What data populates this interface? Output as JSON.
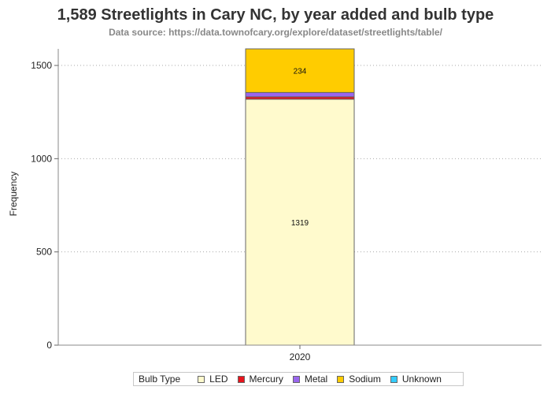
{
  "title": "1,589 Streetlights in Cary NC, by year added and bulb type",
  "subtitle": "Data source: https://data.townofcary.org/explore/dataset/streetlights/table/",
  "chart_data": {
    "type": "bar",
    "stacked": true,
    "title": "1,589 Streetlights in Cary NC, by year added and bulb type",
    "subtitle": "Data source: https://data.townofcary.org/explore/dataset/streetlights/table/",
    "xlabel": "",
    "ylabel": "Frequency",
    "categories": [
      "2020"
    ],
    "ylim": [
      0,
      1589
    ],
    "yticks": [
      0,
      500,
      1000,
      1500
    ],
    "ytick_labels": [
      "0",
      "500",
      "1000",
      "1500"
    ],
    "grid": "horizontal dotted",
    "legend_title": "Bulb Type",
    "legend_position": "bottom",
    "series": [
      {
        "name": "LED",
        "values": [
          1319
        ],
        "color": "#FFFACD",
        "data_label": "1319"
      },
      {
        "name": "Mercury",
        "values": [
          13
        ],
        "color": "#E8141C"
      },
      {
        "name": "Metal",
        "values": [
          23
        ],
        "color": "#9966EE"
      },
      {
        "name": "Sodium",
        "values": [
          234
        ],
        "color": "#FFCC00",
        "data_label": "234"
      },
      {
        "name": "Unknown",
        "values": [
          0
        ],
        "color": "#33CCFF"
      }
    ]
  }
}
